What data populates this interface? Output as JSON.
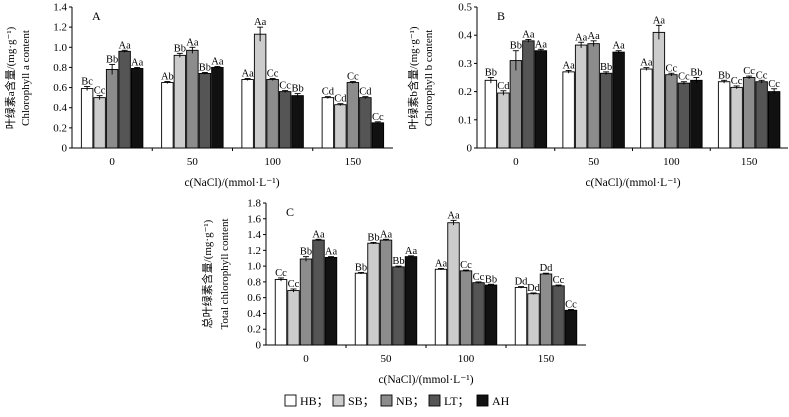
{
  "chart_data": [
    {
      "type": "bar",
      "panel": "A",
      "ylabel_zh": "叶绿素a含量/(mg·g⁻¹)",
      "ylabel_en": "Chlorophyll a content",
      "xlabel": "c(NaCl)/(mmol·L⁻¹)",
      "ylim": [
        0,
        1.4
      ],
      "yticks": [
        "0",
        "0.2",
        "0.4",
        "0.6",
        "0.8",
        "1.0",
        "1.2",
        "1.4"
      ],
      "categories": [
        "0",
        "50",
        "100",
        "150"
      ],
      "series": [
        {
          "name": "HB",
          "values": [
            0.59,
            0.65,
            0.68,
            0.5
          ],
          "errors": [
            0.02,
            0.01,
            0.01,
            0.01
          ],
          "labels": [
            "Bc",
            "Ab",
            "Aa",
            "Cd"
          ]
        },
        {
          "name": "SB",
          "values": [
            0.5,
            0.92,
            1.13,
            0.43
          ],
          "errors": [
            0.02,
            0.02,
            0.07,
            0.01
          ],
          "labels": [
            "Cc",
            "Bb",
            "Aa",
            "Cd"
          ]
        },
        {
          "name": "NB",
          "values": [
            0.78,
            0.97,
            0.68,
            0.65
          ],
          "errors": [
            0.05,
            0.03,
            0.01,
            0.01
          ],
          "labels": [
            "Bb",
            "Aa",
            "Cc",
            "Cc"
          ]
        },
        {
          "name": "LT",
          "values": [
            0.96,
            0.74,
            0.56,
            0.5
          ],
          "errors": [
            0.01,
            0.01,
            0.01,
            0.01
          ],
          "labels": [
            "Aa",
            "Bb",
            "Cc",
            "Cd"
          ]
        },
        {
          "name": "AH",
          "values": [
            0.79,
            0.8,
            0.52,
            0.25
          ],
          "errors": [
            0.01,
            0.01,
            0.02,
            0.01
          ],
          "labels": [
            "Aa",
            "Aa",
            "Bb",
            "Cc"
          ]
        }
      ]
    },
    {
      "type": "bar",
      "panel": "B",
      "ylabel_zh": "叶绿素b含量/(mg·g⁻¹)",
      "ylabel_en": "Chlorophyll b content",
      "xlabel": "c(NaCl)/(mmol·L⁻¹)",
      "ylim": [
        0,
        0.5
      ],
      "yticks": [
        "0",
        "0.1",
        "0.2",
        "0.3",
        "0.4",
        "0.5"
      ],
      "categories": [
        "0",
        "50",
        "100",
        "150"
      ],
      "series": [
        {
          "name": "HB",
          "values": [
            0.24,
            0.27,
            0.28,
            0.235
          ],
          "errors": [
            0.01,
            0.005,
            0.005,
            0.005
          ],
          "labels": [
            "Bb",
            "Aa",
            "Aa",
            "Bb"
          ]
        },
        {
          "name": "SB",
          "values": [
            0.195,
            0.365,
            0.41,
            0.215
          ],
          "errors": [
            0.008,
            0.01,
            0.025,
            0.005
          ],
          "labels": [
            "Cd",
            "Aa",
            "Aa",
            "Cc"
          ]
        },
        {
          "name": "NB",
          "values": [
            0.31,
            0.37,
            0.26,
            0.25
          ],
          "errors": [
            0.035,
            0.01,
            0.005,
            0.005
          ],
          "labels": [
            "Bb",
            "Aa",
            "Cc",
            "Cc"
          ]
        },
        {
          "name": "LT",
          "values": [
            0.38,
            0.265,
            0.23,
            0.235
          ],
          "errors": [
            0.005,
            0.005,
            0.005,
            0.005
          ],
          "labels": [
            "Aa",
            "Bb",
            "Cc",
            "Cc"
          ]
        },
        {
          "name": "AH",
          "values": [
            0.345,
            0.34,
            0.24,
            0.2
          ],
          "errors": [
            0.005,
            0.005,
            0.01,
            0.01
          ],
          "labels": [
            "Aa",
            "Aa",
            "Bb",
            "Cc"
          ]
        }
      ]
    },
    {
      "type": "bar",
      "panel": "C",
      "ylabel_zh": "总叶绿素含量/(mg·g⁻¹)",
      "ylabel_en": "Total chlorophyll content",
      "xlabel": "c(NaCl)/(mmol·L⁻¹)",
      "ylim": [
        0,
        1.8
      ],
      "yticks": [
        "0",
        "0.2",
        "0.4",
        "0.6",
        "0.8",
        "1.0",
        "1.2",
        "1.4",
        "1.6",
        "1.8"
      ],
      "categories": [
        "0",
        "50",
        "100",
        "150"
      ],
      "series": [
        {
          "name": "HB",
          "values": [
            0.83,
            0.91,
            0.96,
            0.73
          ],
          "errors": [
            0.02,
            0.01,
            0.01,
            0.01
          ],
          "labels": [
            "Cc",
            "Bb",
            "Aa",
            "Dd"
          ]
        },
        {
          "name": "SB",
          "values": [
            0.69,
            1.29,
            1.55,
            0.65
          ],
          "errors": [
            0.02,
            0.01,
            0.03,
            0.01
          ],
          "labels": [
            "Cc",
            "Bb",
            "Aa",
            "Dd"
          ]
        },
        {
          "name": "NB",
          "values": [
            1.09,
            1.33,
            0.94,
            0.9
          ],
          "errors": [
            0.03,
            0.01,
            0.01,
            0.01
          ],
          "labels": [
            "Bb",
            "Aa",
            "Cc",
            "Dd"
          ]
        },
        {
          "name": "LT",
          "values": [
            1.33,
            0.99,
            0.79,
            0.75
          ],
          "errors": [
            0.01,
            0.01,
            0.01,
            0.01
          ],
          "labels": [
            "Aa",
            "Bb",
            "Cc",
            "Cc"
          ]
        },
        {
          "name": "AH",
          "values": [
            1.11,
            1.12,
            0.76,
            0.44
          ],
          "errors": [
            0.01,
            0.01,
            0.01,
            0.01
          ],
          "labels": [
            "Aa",
            "Aa",
            "Bb",
            "Cc"
          ]
        }
      ]
    }
  ],
  "legend": [
    {
      "name": "HB",
      "text": "HB；"
    },
    {
      "name": "SB",
      "text": "SB；"
    },
    {
      "name": "NB",
      "text": "NB；"
    },
    {
      "name": "LT",
      "text": "LT；"
    },
    {
      "name": "AH",
      "text": "AH"
    }
  ],
  "colors": {
    "HB": "#ffffff",
    "SB": "#cccccc",
    "NB": "#8c8c8c",
    "LT": "#555555",
    "AH": "#111111",
    "axis": "#000000"
  }
}
